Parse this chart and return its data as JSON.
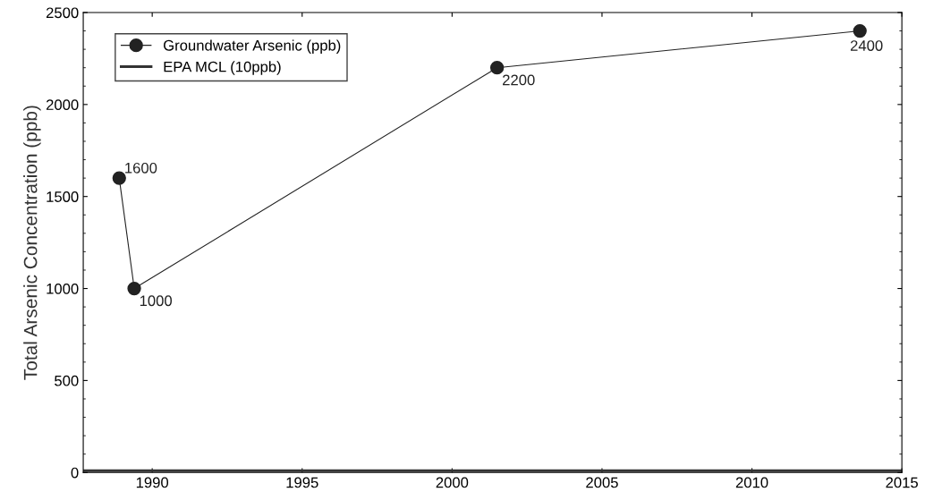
{
  "chart_data": {
    "type": "line",
    "ylabel": "Total Arsenic Concentration (ppb)",
    "xlim": [
      1987.7,
      2015
    ],
    "xticks": [
      1990,
      1995,
      2000,
      2005,
      2010,
      2015
    ],
    "ylim": [
      0,
      2500
    ],
    "yticks": [
      0,
      500,
      1000,
      1500,
      2000,
      2500
    ],
    "grid": false,
    "legend": "top left",
    "series": [
      {
        "name": "Groundwater Arsenic (ppb)",
        "color": "#222222",
        "x": [
          1988.9,
          1989.4,
          2001.5,
          2013.6
        ],
        "values": [
          1600,
          1000,
          2200,
          2400
        ],
        "marker": "circle",
        "line_style": "solid",
        "value_labels": [
          "1600",
          "1000",
          "2200",
          "2400"
        ]
      },
      {
        "name": "EPA MCL (10ppb)",
        "color": "#333333",
        "x": [
          1987.7,
          2015
        ],
        "values": [
          10,
          10
        ],
        "marker": "none",
        "line_style": "solid"
      }
    ]
  }
}
